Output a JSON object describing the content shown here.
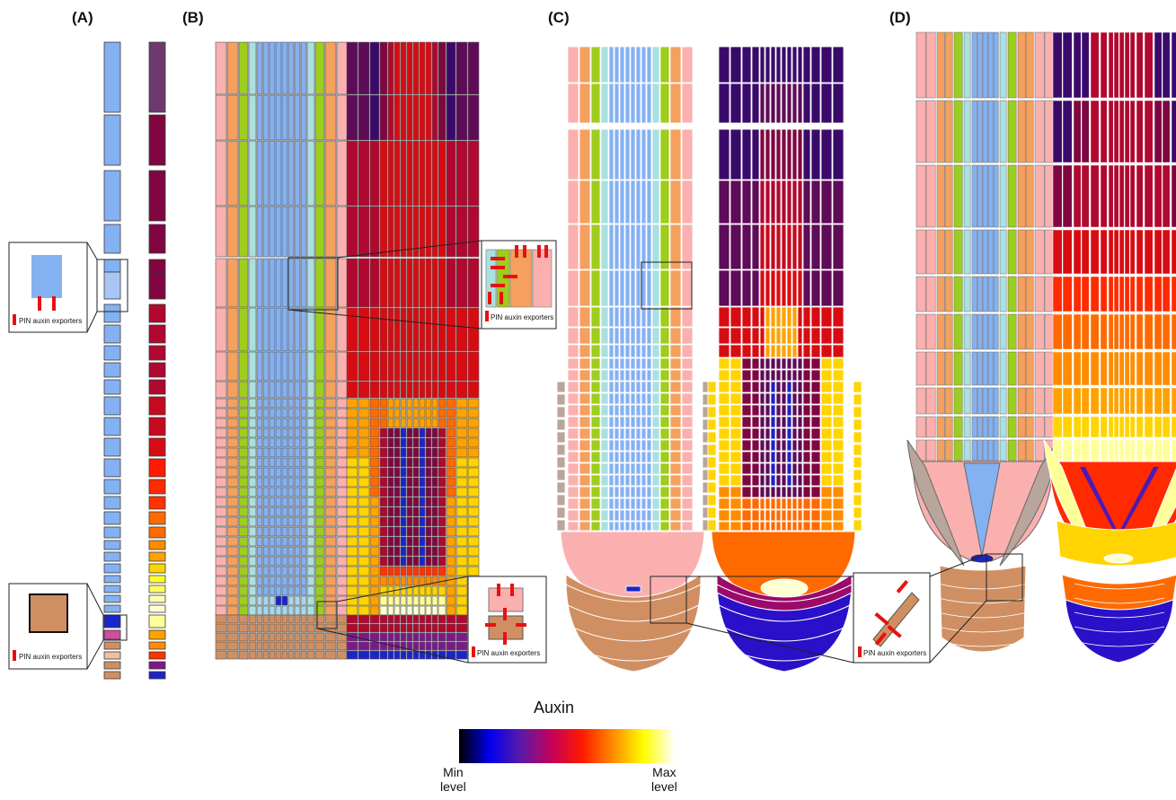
{
  "panels": [
    {
      "label": "(A)"
    },
    {
      "label": "(B)"
    },
    {
      "label": "(C)"
    },
    {
      "label": "(D)"
    }
  ],
  "insets": {
    "caption": "PIN auxin exporters"
  },
  "colorbar": {
    "title": "Auxin",
    "min_label": [
      "Min",
      "level"
    ],
    "max_label": [
      "Max",
      "level"
    ],
    "stops": [
      "#000000",
      "#0000ee",
      "#5a1aa8",
      "#c4005a",
      "#ff1a00",
      "#ff8c00",
      "#ffff00",
      "#ffffff"
    ]
  },
  "cell_colors": {
    "stele": "#84b1f2",
    "pericycle": "#a9e0e0",
    "endodermis": "#9dcd1d",
    "cortex": "#f5a05e",
    "epidermis": "#fbb0b0",
    "lateral_root_cap": "#b8a69c",
    "columella": "#d08f62",
    "qc": "#1b24c9",
    "pin": "#e51212"
  },
  "auxin_scale": [
    "#3a0a6b",
    "#5e0b58",
    "#7f0640",
    "#b0082f",
    "#d70c12",
    "#ff2a00",
    "#ff6a00",
    "#ffa200",
    "#ffd400",
    "#ffff66",
    "#ffffd4"
  ]
}
